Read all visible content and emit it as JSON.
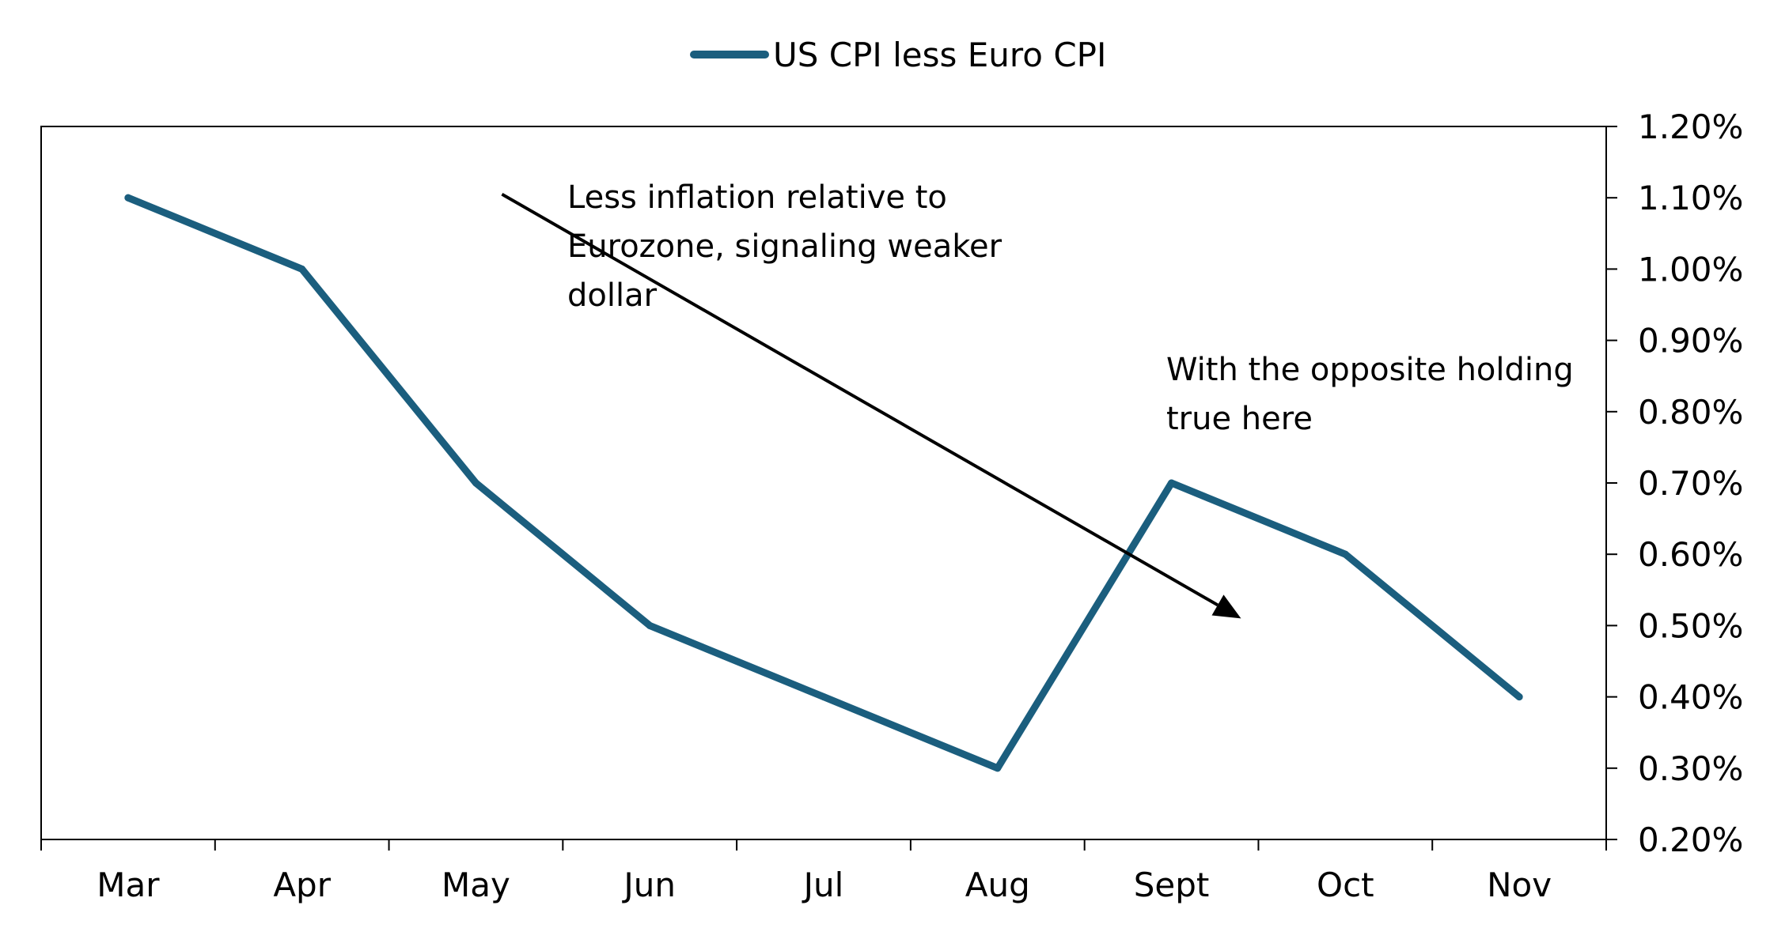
{
  "chart_data": {
    "type": "line",
    "title": "",
    "xlabel": "",
    "ylabel": "",
    "categories": [
      "Mar",
      "Apr",
      "May",
      "Jun",
      "Jul",
      "Aug",
      "Sept",
      "Oct",
      "Nov"
    ],
    "series": [
      {
        "name": "US CPI less Euro CPI",
        "values": [
          1.1,
          1.0,
          0.7,
          0.5,
          0.4,
          0.3,
          0.7,
          0.6,
          0.4
        ],
        "color": "#1b5e7e"
      }
    ],
    "ylim": [
      0.2,
      1.2
    ],
    "yticks": [
      0.2,
      0.3,
      0.4,
      0.5,
      0.6,
      0.7,
      0.8,
      0.9,
      1.0,
      1.1,
      1.2
    ],
    "ytick_labels": [
      "0.20%",
      "0.30%",
      "0.40%",
      "0.50%",
      "0.60%",
      "0.70%",
      "0.80%",
      "0.90%",
      "1.00%",
      "1.10%",
      "1.20%"
    ],
    "y_axis_side": "right",
    "grid": false,
    "legend": {
      "position": "top-center",
      "entries": [
        "US CPI less Euro CPI"
      ]
    },
    "annotations": [
      {
        "id": "weaker",
        "lines": [
          "Less inflation relative to",
          "Eurozone, signaling weaker",
          "dollar"
        ]
      },
      {
        "id": "opposite",
        "lines": [
          "With the opposite holding",
          "true here"
        ]
      }
    ],
    "arrow": {
      "from": {
        "x": 2.15,
        "y": 1.105
      },
      "to": {
        "x": 6.4,
        "y": 0.51
      }
    }
  }
}
